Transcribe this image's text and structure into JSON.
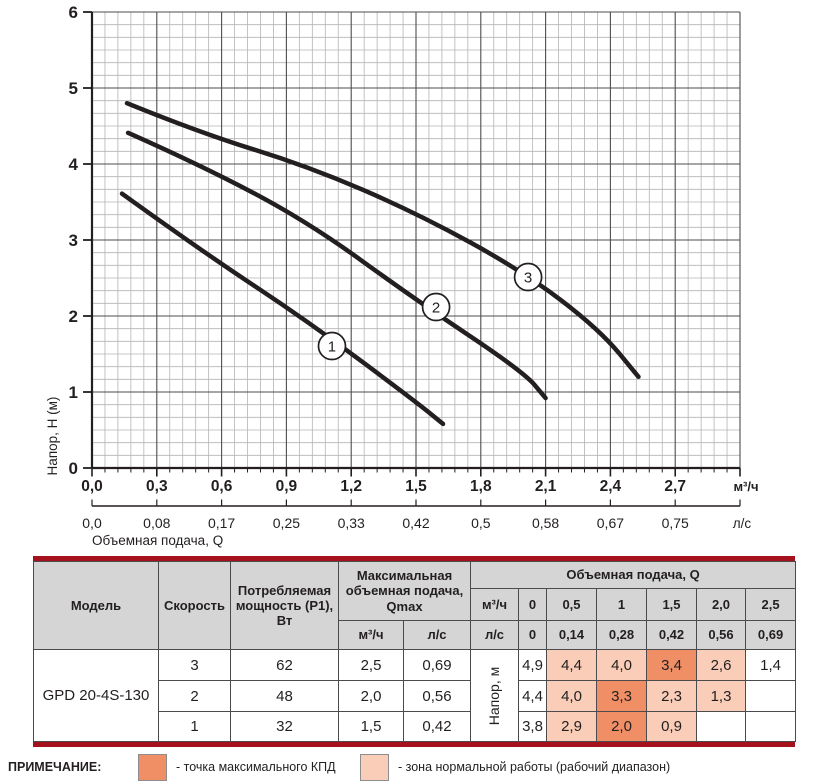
{
  "colors": {
    "accent_red": "#a5121e",
    "zone_light": "#f9cdb7",
    "zone_dark": "#f08f66",
    "header_gray": "#d5d5d6",
    "curve_black": "#231f20",
    "grid_minor": "#b4b4b6",
    "grid_major": "#4d4d4f"
  },
  "chart": {
    "ylabel": "Напор, Н (м)",
    "xlabel": "Объемная подача, Q",
    "y_ticks": [
      "6",
      "5",
      "4",
      "3",
      "2",
      "1",
      "0"
    ],
    "x_scale_m3h": {
      "unit": "м³/ч",
      "ticks": [
        "0,0",
        "0,3",
        "0,6",
        "0,9",
        "1,2",
        "1,5",
        "1,8",
        "2,1",
        "2,4",
        "2,7"
      ]
    },
    "x_scale_ls": {
      "unit": "л/с",
      "ticks": [
        "0,0",
        "0,08",
        "0,17",
        "0,25",
        "0,33",
        "0,42",
        "0,5",
        "0,58",
        "0,67",
        "0,75"
      ]
    },
    "curves": [
      {
        "label": "1",
        "points": [
          [
            0.139,
            3.61
          ],
          [
            0.5,
            2.87
          ],
          [
            1.0,
            1.93
          ],
          [
            1.5,
            0.87
          ],
          [
            1.625,
            0.58
          ]
        ],
        "badge": [
          1.111,
          1.605
        ]
      },
      {
        "label": "2",
        "points": [
          [
            0.167,
            4.41
          ],
          [
            0.5,
            3.99
          ],
          [
            1.0,
            3.24
          ],
          [
            1.5,
            2.21
          ],
          [
            2.0,
            1.26
          ],
          [
            2.1,
            0.92
          ]
        ],
        "badge": [
          1.593,
          2.118
        ]
      },
      {
        "label": "3",
        "points": [
          [
            0.162,
            4.8
          ],
          [
            0.5,
            4.41
          ],
          [
            1.0,
            3.97
          ],
          [
            1.5,
            3.36
          ],
          [
            2.0,
            2.58
          ],
          [
            2.35,
            1.82
          ],
          [
            2.53,
            1.2
          ]
        ],
        "badge": [
          2.019,
          2.513
        ]
      }
    ]
  },
  "chart_data": {
    "type": "line",
    "title": "",
    "xlabel": "Объемная подача, Q",
    "ylabel": "Напор, Н (м)",
    "x_units": [
      "м³/ч",
      "л/с"
    ],
    "xlim_m3h": [
      0,
      3.0
    ],
    "ylim": [
      0,
      6
    ],
    "grid": true,
    "legend_position": "none",
    "categories_m3h": [
      0,
      0.5,
      1,
      1.5,
      2.0,
      2.5
    ],
    "categories_ls": [
      0,
      0.14,
      0.28,
      0.42,
      0.56,
      0.69
    ],
    "series": [
      {
        "name": "3",
        "values": [
          4.9,
          4.4,
          4.0,
          3.4,
          2.6,
          1.4
        ]
      },
      {
        "name": "2",
        "values": [
          4.4,
          4.0,
          3.3,
          2.3,
          1.3,
          null
        ]
      },
      {
        "name": "1",
        "values": [
          3.8,
          2.9,
          2.0,
          0.9,
          null,
          null
        ]
      }
    ]
  },
  "table": {
    "headers": {
      "model": "Модель",
      "speed": "Скорость",
      "power": "Потребляемая мощность (P1), Вт",
      "qmax": "Максимальная объемная подача, Qmax",
      "qmax_m3h": "м³/ч",
      "qmax_ls": "л/с",
      "flow": "Объемная подача, Q",
      "unit_m3h": "м³/ч",
      "unit_ls": "л/с",
      "q_m3h": [
        "0",
        "0,5",
        "1",
        "1,5",
        "2,0",
        "2,5"
      ],
      "q_ls": [
        "0",
        "0,14",
        "0,28",
        "0,42",
        "0,56",
        "0,69"
      ]
    },
    "body": {
      "model": "GPD 20-4S-130",
      "napor_label": "Напор, м",
      "rows": [
        {
          "speed": "3",
          "p1": "62",
          "qmax_m3h": "2,5",
          "qmax_ls": "0,69",
          "h": [
            {
              "v": "4,9",
              "z": ""
            },
            {
              "v": "4,4",
              "z": "light"
            },
            {
              "v": "4,0",
              "z": "light"
            },
            {
              "v": "3,4",
              "z": "dark"
            },
            {
              "v": "2,6",
              "z": "light"
            },
            {
              "v": "1,4",
              "z": ""
            }
          ]
        },
        {
          "speed": "2",
          "p1": "48",
          "qmax_m3h": "2,0",
          "qmax_ls": "0,56",
          "h": [
            {
              "v": "4,4",
              "z": ""
            },
            {
              "v": "4,0",
              "z": "light"
            },
            {
              "v": "3,3",
              "z": "dark"
            },
            {
              "v": "2,3",
              "z": "light"
            },
            {
              "v": "1,3",
              "z": "light"
            },
            {
              "v": "",
              "z": ""
            }
          ]
        },
        {
          "speed": "1",
          "p1": "32",
          "qmax_m3h": "1,5",
          "qmax_ls": "0,42",
          "h": [
            {
              "v": "3,8",
              "z": ""
            },
            {
              "v": "2,9",
              "z": "light"
            },
            {
              "v": "2,0",
              "z": "dark"
            },
            {
              "v": "0,9",
              "z": "light"
            },
            {
              "v": "",
              "z": ""
            },
            {
              "v": "",
              "z": ""
            }
          ]
        }
      ]
    }
  },
  "legend": {
    "title": "ПРИМЕЧАНИЕ:",
    "items": [
      {
        "swatch": "dark",
        "label": "- точка максимального КПД"
      },
      {
        "swatch": "light",
        "label": "- зона нормальной работы (рабочий диапазон)"
      }
    ]
  }
}
